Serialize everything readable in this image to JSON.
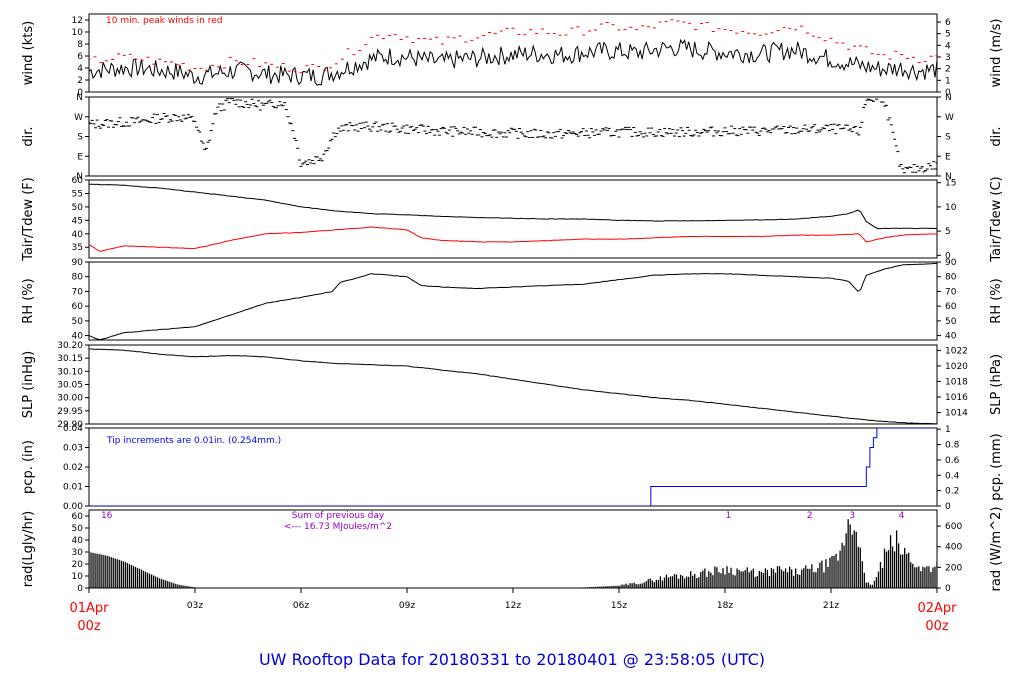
{
  "title": "UW Rooftop Data for 20180331  to  20180401 @ 23:58:05  (UTC)",
  "colors": {
    "black": "#000000",
    "red": "#ff0000",
    "blue": "#0000ff",
    "purple": "#9900cc",
    "title": "#0000dd"
  },
  "x_axis": {
    "hours": [
      0,
      3,
      6,
      9,
      12,
      15,
      18,
      21,
      24
    ],
    "tick_labels": [
      "",
      "03z",
      "06z",
      "09z",
      "12z",
      "15z",
      "18z",
      "21z",
      ""
    ],
    "start_label": [
      "01Apr",
      "00z"
    ],
    "end_label": [
      "02Apr",
      "00z"
    ]
  },
  "chart_data": [
    {
      "type": "line",
      "ylabel_left": "wind (kts)",
      "ylabel_right": "wind (m/s)",
      "ylim": [
        0,
        13
      ],
      "yticks_left": [
        0,
        2,
        4,
        6,
        8,
        10,
        12
      ],
      "yticks_right": [
        0,
        1,
        2,
        3,
        4,
        5,
        6
      ],
      "annotation": "10 min. peak winds in red",
      "series": [
        {
          "hours": [
            0,
            0.5,
            1,
            1.5,
            2,
            2.5,
            3,
            3.5,
            4,
            4.5,
            5,
            5.5,
            6,
            6.5,
            7,
            7.5,
            8,
            8.5,
            9,
            9.5,
            10,
            10.5,
            11,
            11.5,
            12,
            12.5,
            13,
            13.5,
            14,
            14.5,
            15,
            15.5,
            16,
            16.5,
            17,
            17.5,
            18,
            18.5,
            19,
            19.5,
            20,
            20.5,
            21,
            21.5,
            22,
            22.5,
            23,
            23.5,
            24
          ],
          "values": [
            3.5,
            3.8,
            4.0,
            4.0,
            3.6,
            3.4,
            2.6,
            3.0,
            3.5,
            3.5,
            3.0,
            2.8,
            2.8,
            2.6,
            3.4,
            4.5,
            5.5,
            6.0,
            5.8,
            5.3,
            5.0,
            5.5,
            5.6,
            6.0,
            6.2,
            6.4,
            6.3,
            6.2,
            6.6,
            6.8,
            6.8,
            6.5,
            7.0,
            7.4,
            7.2,
            6.8,
            6.6,
            6.5,
            6.3,
            6.8,
            7.0,
            6.2,
            5.5,
            4.8,
            4.2,
            3.8,
            4.0,
            3.5,
            3.8
          ]
        },
        {
          "hours": [
            0,
            0.5,
            1,
            1.5,
            2,
            2.5,
            3,
            3.5,
            4,
            4.5,
            5,
            5.5,
            6,
            6.5,
            7,
            7.5,
            8,
            8.5,
            9,
            9.5,
            10,
            10.5,
            11,
            11.5,
            12,
            12.5,
            13,
            13.5,
            14,
            14.5,
            15,
            15.5,
            16,
            16.5,
            17,
            17.5,
            18,
            18.5,
            19,
            19.5,
            20,
            20.5,
            21,
            21.5,
            22,
            22.5,
            23,
            23.5,
            24
          ],
          "values": [
            5.0,
            5.5,
            5.8,
            5.5,
            5.0,
            4.8,
            4.0,
            4.4,
            5.0,
            5.0,
            4.5,
            4.2,
            4.0,
            4.0,
            5.2,
            7.0,
            9.0,
            9.8,
            9.2,
            8.6,
            8.3,
            9.0,
            9.3,
            9.6,
            10.0,
            10.1,
            10.0,
            9.8,
            10.3,
            10.8,
            10.8,
            10.3,
            11.0,
            11.5,
            11.3,
            10.8,
            10.5,
            10.3,
            10.0,
            10.6,
            11.0,
            10.0,
            8.8,
            7.8,
            6.8,
            6.0,
            6.2,
            5.6,
            5.8
          ]
        }
      ]
    },
    {
      "type": "scatter",
      "ylabel_left": "dir.",
      "ylabel_right": "dir.",
      "ylim": [
        0,
        360
      ],
      "ytick_values": [
        0,
        90,
        180,
        270,
        360
      ],
      "yticks_left": [
        "N",
        "E",
        "S",
        "W",
        "N"
      ],
      "yticks_right": [
        "N",
        "E",
        "S",
        "W",
        "N"
      ],
      "series": [
        {
          "hours": [
            0,
            0.5,
            1,
            1.5,
            2,
            2.5,
            3,
            3.3,
            3.6,
            4,
            4.5,
            5,
            5.5,
            5.8,
            6,
            6.3,
            6.6,
            7,
            7.5,
            8,
            9,
            10,
            11,
            12,
            13,
            14,
            15,
            16,
            17,
            18,
            19,
            20,
            21,
            21.5,
            21.8,
            22,
            22.5,
            23,
            23.5,
            24
          ],
          "values": [
            235,
            240,
            245,
            250,
            265,
            270,
            255,
            100,
            300,
            340,
            330,
            320,
            340,
            200,
            60,
            70,
            90,
            210,
            225,
            225,
            215,
            205,
            200,
            195,
            190,
            195,
            200,
            200,
            200,
            205,
            205,
            210,
            215,
            210,
            200,
            350,
            355,
            20,
            35,
            50
          ]
        }
      ]
    },
    {
      "type": "line",
      "ylabel_left": "Tair/Tdew (F)",
      "ylabel_right": "Tair/Tdew (C)",
      "ylim": [
        31,
        60
      ],
      "yticks_left": [
        35,
        40,
        45,
        50,
        55,
        60
      ],
      "yticks_right": [
        0,
        5,
        10,
        15
      ],
      "series": [
        {
          "hours": [
            0,
            1,
            2,
            3,
            4,
            5,
            6,
            7,
            8,
            9,
            10,
            11,
            12,
            13,
            14,
            15,
            16,
            17,
            18,
            19,
            20,
            21,
            21.5,
            21.8,
            22,
            22.3,
            23,
            24
          ],
          "values": [
            58.5,
            58.0,
            57.0,
            55.5,
            54.0,
            52.5,
            50.0,
            48.5,
            47.5,
            47.0,
            46.5,
            46.0,
            45.8,
            45.5,
            45.5,
            45.0,
            44.8,
            44.8,
            45.0,
            45.2,
            45.5,
            46.5,
            47.5,
            49.0,
            44.5,
            42.0,
            42.0,
            42.0
          ]
        },
        {
          "hours": [
            0,
            0.3,
            1,
            2,
            3,
            4,
            5,
            6,
            7,
            8,
            9,
            9.4,
            10,
            11,
            12,
            13,
            14,
            15,
            16,
            17,
            18,
            19,
            20,
            21,
            21.5,
            21.8,
            22,
            22.5,
            23,
            24
          ],
          "values": [
            36.0,
            33.5,
            35.5,
            35.0,
            34.5,
            37.5,
            40.0,
            40.5,
            41.5,
            42.5,
            41.5,
            38.5,
            37.5,
            37.0,
            37.0,
            37.5,
            38.0,
            38.0,
            38.5,
            39.0,
            39.0,
            39.0,
            39.5,
            39.5,
            39.8,
            40.0,
            37.0,
            38.5,
            39.5,
            40.0
          ]
        }
      ]
    },
    {
      "type": "line",
      "ylabel_left": "RH (%)",
      "ylabel_right": "RH (%)",
      "ylim": [
        37,
        90
      ],
      "yticks_left": [
        40,
        50,
        60,
        70,
        80,
        90
      ],
      "yticks_right": [
        40,
        50,
        60,
        70,
        80,
        90
      ],
      "series": [
        {
          "hours": [
            0,
            0.3,
            1,
            2,
            3,
            4,
            5,
            6,
            6.9,
            7.1,
            8,
            9,
            9.4,
            10,
            11,
            12,
            13,
            14,
            15,
            16,
            17,
            18,
            19,
            20,
            21,
            21.5,
            21.8,
            22,
            22.5,
            23,
            24
          ],
          "values": [
            40,
            37,
            42,
            44,
            46,
            54,
            62,
            66,
            70,
            76,
            82,
            80,
            74,
            73,
            72,
            73,
            74,
            75,
            78,
            81,
            82,
            82,
            81,
            80,
            79,
            77,
            69,
            81,
            85,
            88,
            89
          ]
        }
      ]
    },
    {
      "type": "line",
      "ylabel_left": "SLP (inHg)",
      "ylabel_right": "SLP (hPa)",
      "ylim": [
        29.9,
        30.2
      ],
      "yticks_left": [
        "29.90",
        "29.95",
        "30.00",
        "30.05",
        "30.10",
        "30.15",
        "30.20"
      ],
      "yticks_right": [
        1014,
        1016,
        1018,
        1020,
        1022
      ],
      "series": [
        {
          "hours": [
            0,
            1,
            2,
            3,
            4,
            5,
            6,
            7,
            8,
            9,
            10,
            11,
            12,
            13,
            14,
            15,
            16,
            17,
            18,
            19,
            20,
            21,
            22,
            23,
            24
          ],
          "values": [
            30.185,
            30.18,
            30.165,
            30.155,
            30.16,
            30.155,
            30.14,
            30.13,
            30.125,
            30.12,
            30.105,
            30.09,
            30.07,
            30.05,
            30.03,
            30.015,
            30.0,
            29.99,
            29.975,
            29.96,
            29.945,
            29.93,
            29.915,
            29.905,
            29.9
          ]
        }
      ]
    },
    {
      "type": "line",
      "ylabel_left": "pcp. (in)",
      "ylabel_right": "pcp. (mm)",
      "ylim": [
        0,
        0.04
      ],
      "yticks_left": [
        "0.00",
        "0.01",
        "0.02",
        "0.03",
        "0.04"
      ],
      "yticks_right": [
        "0",
        "0.2",
        "0.4",
        "0.6",
        "0.8",
        "1"
      ],
      "annotation": "Tip increments are 0.01in. (0.254mm.)",
      "series": [
        {
          "hours": [
            0,
            15.9,
            15.9,
            22.0,
            22.0,
            22.1,
            22.1,
            22.2,
            22.2,
            22.3,
            22.3,
            24
          ],
          "values": [
            0,
            0,
            0.01,
            0.01,
            0.02,
            0.02,
            0.03,
            0.03,
            0.035,
            0.035,
            0.04,
            0.04
          ]
        }
      ]
    },
    {
      "type": "area",
      "ylabel_left": "rad(Lgly/hr)",
      "ylabel_right": "rad (W/m^2)",
      "ylim": [
        0,
        65
      ],
      "yticks_left": [
        0,
        10,
        20,
        30,
        40,
        50,
        60
      ],
      "yticks_right": [
        0,
        200,
        400,
        600
      ],
      "annotations": [
        "Sum of previous day",
        "<--- 16.73 MJoules/m^2"
      ],
      "day_marks": [
        "16",
        "1",
        "2",
        "3",
        "4"
      ],
      "series": [
        {
          "hours": [
            0,
            0.5,
            1,
            1.5,
            2,
            2.5,
            3,
            3.2,
            13.5,
            14,
            15,
            15.5,
            16,
            16.5,
            17,
            17.5,
            18,
            18.5,
            19,
            19.5,
            20,
            20.5,
            21,
            21.3,
            21.5,
            21.6,
            21.7,
            21.8,
            21.9,
            22,
            22.2,
            22.5,
            22.8,
            23,
            23.3,
            23.5,
            24
          ],
          "values": [
            30,
            27,
            22,
            15,
            8,
            3,
            0.5,
            0,
            0,
            0.5,
            2,
            4,
            7,
            10,
            11,
            13,
            16,
            14,
            12,
            15,
            13,
            16,
            20,
            30,
            60,
            48,
            62,
            40,
            15,
            4,
            3,
            25,
            40,
            30,
            25,
            15,
            20
          ]
        }
      ]
    }
  ]
}
